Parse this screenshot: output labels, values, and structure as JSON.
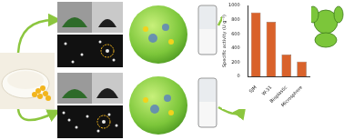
{
  "chart_data": {
    "type": "bar",
    "y_label": "Specific activity (U g⁻¹)",
    "categories": [
      "SJM",
      "W-31",
      "Bioplastic",
      "Microsphere"
    ],
    "values": [
      900,
      770,
      310,
      210
    ],
    "color": "#d9622b",
    "ylim": [
      0,
      1000
    ],
    "yticks": [
      0,
      200,
      400,
      600,
      800,
      1000
    ],
    "grid": false
  }
}
